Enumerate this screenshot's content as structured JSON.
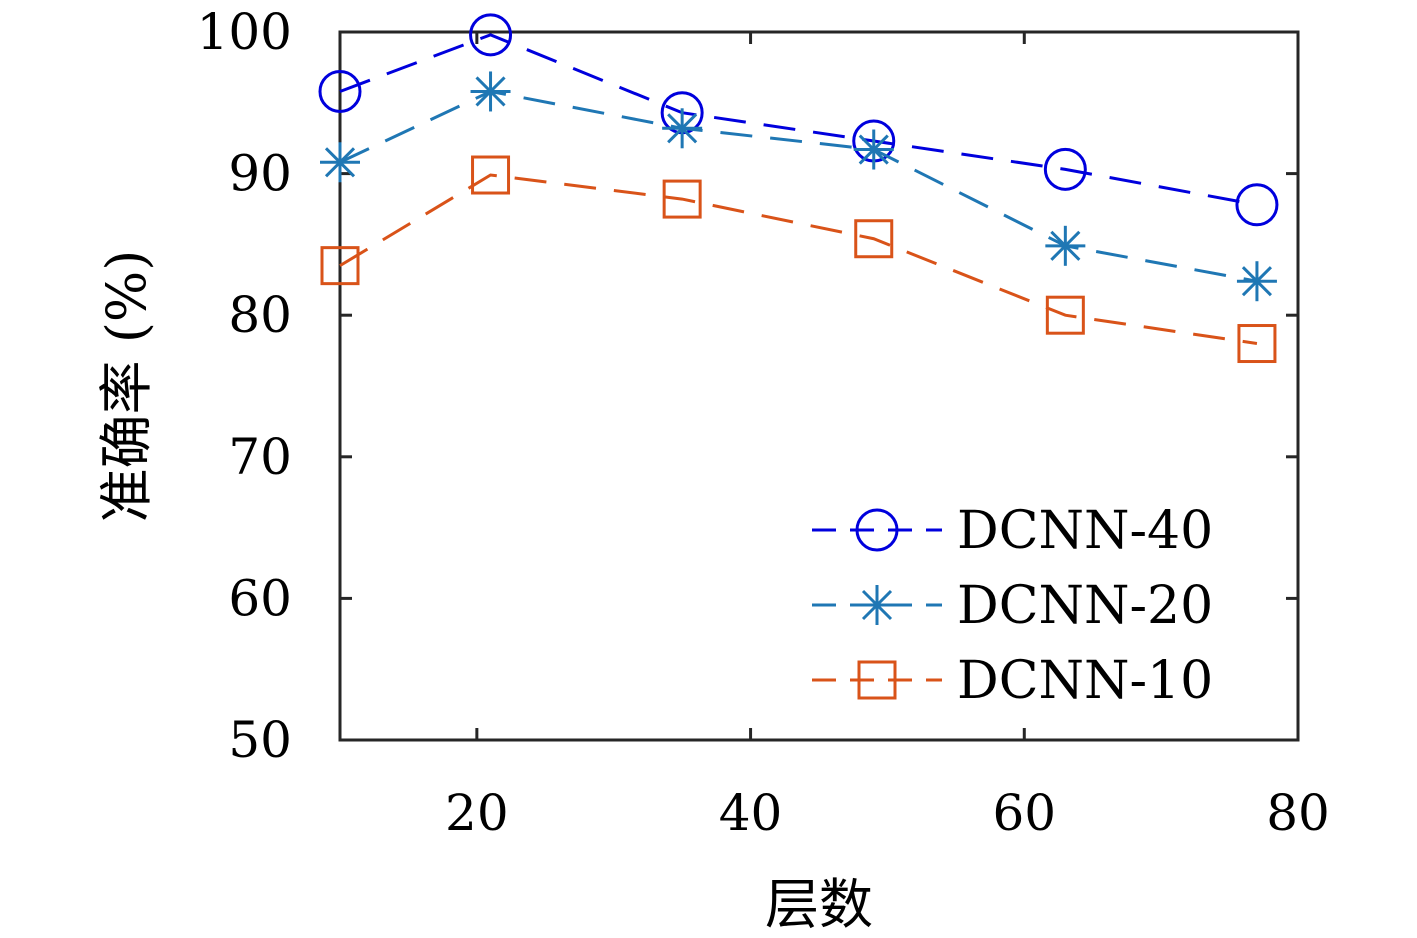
{
  "chart_data": {
    "type": "line",
    "xlabel": "层数",
    "ylabel": "准确率 (%)",
    "xlim": [
      10,
      80
    ],
    "ylim": [
      50,
      100
    ],
    "xticks": [
      20,
      40,
      60,
      80
    ],
    "yticks": [
      50,
      60,
      70,
      80,
      90,
      100
    ],
    "x": [
      10,
      21,
      35,
      49,
      63,
      77
    ],
    "grid": false,
    "legend_position": "bottom-right",
    "series": [
      {
        "name": "DCNN-40",
        "marker": "circle",
        "color": "#0000dd",
        "values": [
          95.8,
          99.8,
          94.3,
          92.3,
          90.3,
          87.8
        ]
      },
      {
        "name": "DCNN-20",
        "marker": "asterisk",
        "color": "#1f77b4",
        "values": [
          90.8,
          95.8,
          93.2,
          91.7,
          84.9,
          82.4
        ]
      },
      {
        "name": "DCNN-10",
        "marker": "square",
        "color": "#d95319",
        "values": [
          83.5,
          89.9,
          88.2,
          85.4,
          80.0,
          78.0
        ]
      }
    ]
  }
}
